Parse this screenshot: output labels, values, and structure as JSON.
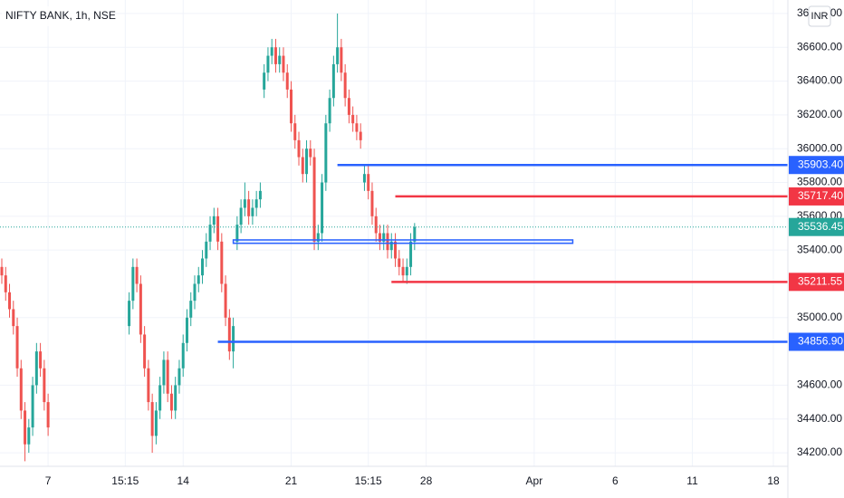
{
  "chart_data": {
    "type": "candlestick",
    "title": "NIFTY BANK, 1h, NSE",
    "currency": "INR",
    "up_color": "#26a69a",
    "down_color": "#ef5350",
    "grid": true,
    "ylim": [
      34120,
      36880
    ],
    "yticks": [
      {
        "value": 34200,
        "label": "34200.00"
      },
      {
        "value": 34400,
        "label": "34400.00"
      },
      {
        "value": 34600,
        "label": "34600.00"
      },
      {
        "value": 35000,
        "label": "35000.00"
      },
      {
        "value": 35400,
        "label": "35400.00"
      },
      {
        "value": 35600,
        "label": "35600.00"
      },
      {
        "value": 35800,
        "label": "35800.00"
      },
      {
        "value": 36000,
        "label": "36000.00"
      },
      {
        "value": 36200,
        "label": "36200.00"
      },
      {
        "value": 36400,
        "label": "36400.00"
      },
      {
        "value": 36600,
        "label": "36600.00"
      },
      {
        "value": 36800,
        "label": "36800.00"
      }
    ],
    "xticks": [
      {
        "value": 12,
        "label": "7"
      },
      {
        "value": 32,
        "label": "15:15"
      },
      {
        "value": 47,
        "label": "14"
      },
      {
        "value": 75,
        "label": "21"
      },
      {
        "value": 95,
        "label": "15:15"
      },
      {
        "value": 110,
        "label": "28"
      },
      {
        "value": 138,
        "label": "Apr"
      },
      {
        "value": 159,
        "label": "6"
      },
      {
        "value": 179,
        "label": "11"
      },
      {
        "value": 200,
        "label": "18"
      }
    ],
    "candles": [
      [
        35300,
        35350,
        35200,
        35250
      ],
      [
        35250,
        35300,
        35100,
        35150
      ],
      [
        35150,
        35200,
        35000,
        35050
      ],
      [
        35050,
        35100,
        34900,
        34950
      ],
      [
        34950,
        35000,
        34650,
        34700
      ],
      [
        34700,
        34750,
        34400,
        34450
      ],
      [
        34450,
        34500,
        34150,
        34250
      ],
      [
        34250,
        34400,
        34200,
        34350
      ],
      [
        34350,
        34650,
        34300,
        34600
      ],
      [
        34600,
        34850,
        34550,
        34800
      ],
      [
        34800,
        34850,
        34650,
        34700
      ],
      [
        34700,
        34750,
        34450,
        34500
      ],
      [
        34500,
        34550,
        34300,
        34350
      ],
      null,
      null,
      null,
      null,
      null,
      null,
      null,
      null,
      null,
      null,
      null,
      null,
      null,
      null,
      null,
      null,
      null,
      null,
      null,
      null,
      [
        34950,
        35150,
        34900,
        35100
      ],
      [
        35100,
        35350,
        35050,
        35300
      ],
      [
        35300,
        35350,
        35150,
        35200
      ],
      [
        35200,
        35250,
        34850,
        34900
      ],
      [
        34900,
        34950,
        34650,
        34700
      ],
      [
        34700,
        34750,
        34450,
        34500
      ],
      [
        34500,
        34550,
        34200,
        34300
      ],
      [
        34300,
        34500,
        34250,
        34450
      ],
      [
        34450,
        34650,
        34400,
        34600
      ],
      [
        34600,
        34800,
        34550,
        34750
      ],
      [
        34750,
        34800,
        34500,
        34550
      ],
      [
        34550,
        34600,
        34400,
        34450
      ],
      [
        34450,
        34650,
        34400,
        34600
      ],
      [
        34600,
        34750,
        34550,
        34700
      ],
      [
        34700,
        34900,
        34650,
        34850
      ],
      [
        34850,
        35050,
        34800,
        35000
      ],
      [
        35000,
        35150,
        34950,
        35100
      ],
      [
        35100,
        35250,
        35050,
        35200
      ],
      [
        35200,
        35300,
        35150,
        35250
      ],
      [
        35250,
        35400,
        35200,
        35350
      ],
      [
        35350,
        35500,
        35300,
        35450
      ],
      [
        35450,
        35600,
        35400,
        35550
      ],
      [
        35550,
        35650,
        35500,
        35600
      ],
      [
        35600,
        35650,
        35400,
        35450
      ],
      [
        35450,
        35500,
        35150,
        35200
      ],
      [
        35200,
        35250,
        34950,
        35000
      ],
      [
        35000,
        35050,
        34750,
        34800
      ],
      [
        34800,
        35000,
        34700,
        34950
      ],
      [
        35450,
        35600,
        35400,
        35550
      ],
      [
        35550,
        35700,
        35500,
        35650
      ],
      [
        35650,
        35800,
        35600,
        35700
      ],
      [
        35700,
        35750,
        35550,
        35600
      ],
      [
        35600,
        35700,
        35550,
        35650
      ],
      [
        35650,
        35750,
        35600,
        35700
      ],
      [
        35700,
        35800,
        35650,
        35750
      ],
      [
        36350,
        36500,
        36300,
        36450
      ],
      [
        36450,
        36600,
        36400,
        36550
      ],
      [
        36550,
        36650,
        36500,
        36600
      ],
      [
        36600,
        36650,
        36450,
        36500
      ],
      [
        36500,
        36600,
        36450,
        36550
      ],
      [
        36550,
        36600,
        36400,
        36450
      ],
      [
        36450,
        36500,
        36300,
        36350
      ],
      [
        36350,
        36400,
        36100,
        36150
      ],
      [
        36150,
        36200,
        36000,
        36050
      ],
      [
        36050,
        36100,
        35900,
        35950
      ],
      [
        35950,
        36000,
        35800,
        35850
      ],
      [
        35850,
        36050,
        35800,
        36000
      ],
      [
        36000,
        36050,
        35900,
        35950
      ],
      [
        35950,
        36000,
        35400,
        35450
      ],
      [
        35450,
        35550,
        35400,
        35500
      ],
      [
        35500,
        35850,
        35450,
        35800
      ],
      [
        35800,
        36200,
        35750,
        36150
      ],
      [
        36150,
        36350,
        36100,
        36300
      ],
      [
        36300,
        36550,
        36250,
        36500
      ],
      [
        36500,
        36800,
        36450,
        36600
      ],
      [
        36600,
        36650,
        36400,
        36450
      ],
      [
        36450,
        36500,
        36250,
        36300
      ],
      [
        36300,
        36350,
        36150,
        36200
      ],
      [
        36200,
        36250,
        36100,
        36150
      ],
      [
        36150,
        36200,
        36050,
        36100
      ],
      [
        36100,
        36150,
        36000,
        36050
      ],
      [
        35800,
        35900,
        35750,
        35850
      ],
      [
        35850,
        35900,
        35700,
        35750
      ],
      [
        35750,
        35800,
        35550,
        35600
      ],
      [
        35600,
        35650,
        35450,
        35500
      ],
      [
        35500,
        35550,
        35400,
        35450
      ],
      [
        35450,
        35550,
        35400,
        35500
      ],
      [
        35500,
        35550,
        35350,
        35400
      ],
      [
        35400,
        35500,
        35350,
        35450
      ],
      [
        35450,
        35500,
        35300,
        35350
      ],
      [
        35350,
        35400,
        35250,
        35300
      ],
      [
        35300,
        35350,
        35211.55,
        35250
      ],
      [
        35250,
        35350,
        35200,
        35300
      ],
      [
        35300,
        35500,
        35250,
        35450
      ],
      [
        35450,
        35560,
        35400,
        35536.45
      ]
    ],
    "levels": [
      {
        "value": 35903.4,
        "label": "35903.40",
        "color": "#2962ff",
        "from": 87
      },
      {
        "value": 35717.4,
        "label": "35717.40",
        "color": "#f23645",
        "from": 102
      },
      {
        "value": 35211.55,
        "label": "35211.55",
        "color": "#f23645",
        "from": 101
      },
      {
        "value": 34856.9,
        "label": "34856.90",
        "color": "#2962ff",
        "from": 56
      }
    ],
    "zone": {
      "top": 35460,
      "bottom": 35440,
      "from": 60,
      "to": 148,
      "color": "#2962ff"
    },
    "last_price": {
      "value": 35536.45,
      "label": "35536.45",
      "color": "#26a69a"
    }
  }
}
